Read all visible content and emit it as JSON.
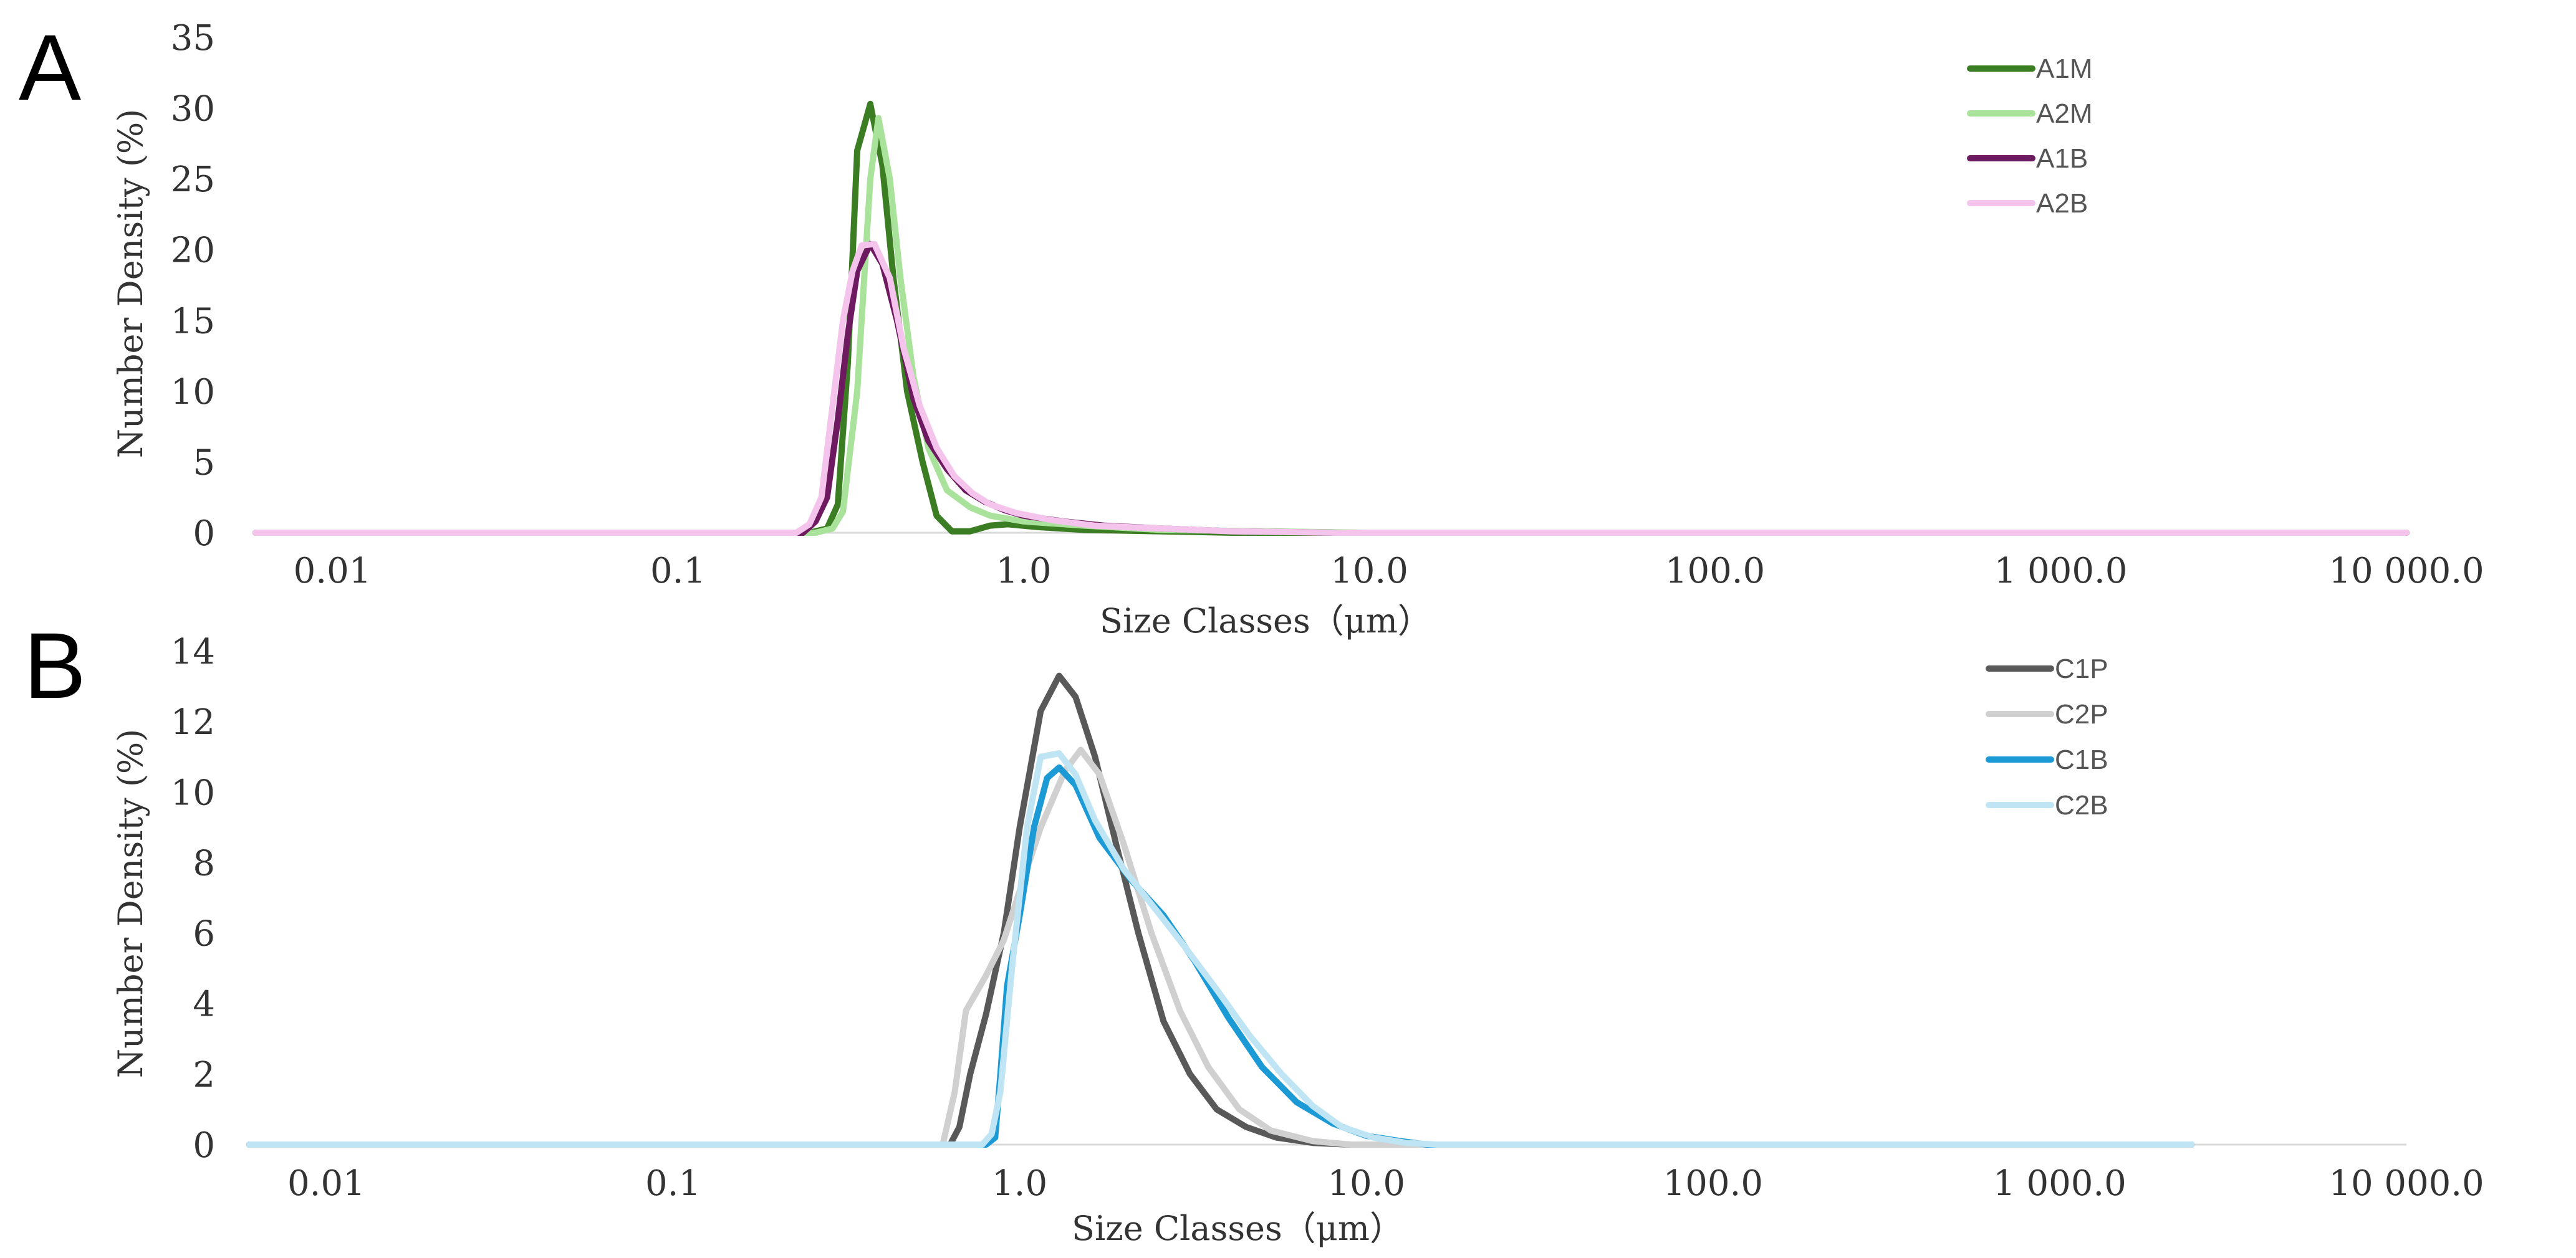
{
  "chart_data": [
    {
      "panel": "A",
      "type": "line",
      "xscale": "log",
      "xlim": [
        0.006,
        10000
      ],
      "ylim": [
        0,
        35
      ],
      "yticks": [
        0,
        5,
        10,
        15,
        20,
        25,
        30,
        35
      ],
      "xticks": [
        {
          "value": 0.01,
          "label": "0.01"
        },
        {
          "value": 0.1,
          "label": "0.1"
        },
        {
          "value": 1,
          "label": "1.0"
        },
        {
          "value": 10,
          "label": "10.0"
        },
        {
          "value": 100,
          "label": "100.0"
        },
        {
          "value": 1000,
          "label": "1 000.0"
        },
        {
          "value": 10000,
          "label": "10 000.0"
        }
      ],
      "xlabel": "Size Classes（μm）",
      "ylabel": "Number Density (%)",
      "legend_position": "top-right",
      "series": [
        {
          "name": "A1M",
          "color": "#3a7d22",
          "points": [
            [
              0.006,
              0
            ],
            [
              0.24,
              0
            ],
            [
              0.27,
              0.3
            ],
            [
              0.29,
              2
            ],
            [
              0.31,
              12
            ],
            [
              0.33,
              27
            ],
            [
              0.36,
              30.3
            ],
            [
              0.39,
              26
            ],
            [
              0.42,
              18
            ],
            [
              0.46,
              10
            ],
            [
              0.51,
              5
            ],
            [
              0.56,
              1.2
            ],
            [
              0.62,
              0.1
            ],
            [
              0.7,
              0.1
            ],
            [
              0.8,
              0.5
            ],
            [
              0.9,
              0.6
            ],
            [
              1.1,
              0.4
            ],
            [
              1.5,
              0.2
            ],
            [
              2.5,
              0.1
            ],
            [
              4,
              0
            ],
            [
              10000,
              0
            ]
          ]
        },
        {
          "name": "A2M",
          "color": "#a9e29a",
          "points": [
            [
              0.006,
              0
            ],
            [
              0.25,
              0
            ],
            [
              0.28,
              0.3
            ],
            [
              0.3,
              1.5
            ],
            [
              0.33,
              10
            ],
            [
              0.36,
              25
            ],
            [
              0.38,
              29.3
            ],
            [
              0.41,
              25
            ],
            [
              0.44,
              18
            ],
            [
              0.48,
              11
            ],
            [
              0.53,
              6
            ],
            [
              0.6,
              3
            ],
            [
              0.7,
              1.8
            ],
            [
              0.8,
              1.2
            ],
            [
              1,
              0.8
            ],
            [
              1.5,
              0.5
            ],
            [
              2.5,
              0.2
            ],
            [
              5,
              0.1
            ],
            [
              10,
              0
            ],
            [
              10000,
              0
            ]
          ]
        },
        {
          "name": "A1B",
          "color": "#6e1a60",
          "points": [
            [
              0.006,
              0
            ],
            [
              0.23,
              0
            ],
            [
              0.25,
              0.8
            ],
            [
              0.27,
              2.5
            ],
            [
              0.29,
              8
            ],
            [
              0.31,
              14
            ],
            [
              0.33,
              18.5
            ],
            [
              0.36,
              20.4
            ],
            [
              0.39,
              19
            ],
            [
              0.43,
              15
            ],
            [
              0.48,
              9.5
            ],
            [
              0.53,
              6.5
            ],
            [
              0.6,
              4.5
            ],
            [
              0.68,
              3
            ],
            [
              0.77,
              2.2
            ],
            [
              0.88,
              1.6
            ],
            [
              1,
              1.2
            ],
            [
              1.3,
              0.8
            ],
            [
              1.7,
              0.5
            ],
            [
              2.5,
              0.3
            ],
            [
              4,
              0.1
            ],
            [
              8,
              0
            ],
            [
              10000,
              0
            ]
          ]
        },
        {
          "name": "A2B",
          "color": "#f5c4ec",
          "points": [
            [
              0.006,
              0
            ],
            [
              0.22,
              0
            ],
            [
              0.24,
              0.6
            ],
            [
              0.26,
              2.5
            ],
            [
              0.28,
              9
            ],
            [
              0.3,
              15
            ],
            [
              0.32,
              18.5
            ],
            [
              0.34,
              20.3
            ],
            [
              0.37,
              20.4
            ],
            [
              0.41,
              18
            ],
            [
              0.45,
              13
            ],
            [
              0.5,
              9
            ],
            [
              0.56,
              6
            ],
            [
              0.63,
              4
            ],
            [
              0.71,
              2.8
            ],
            [
              0.8,
              2
            ],
            [
              0.95,
              1.4
            ],
            [
              1.2,
              0.9
            ],
            [
              1.6,
              0.5
            ],
            [
              2.5,
              0.3
            ],
            [
              4,
              0.1
            ],
            [
              8,
              0
            ],
            [
              10000,
              0
            ]
          ]
        }
      ]
    },
    {
      "panel": "B",
      "type": "line",
      "xscale": "log",
      "xlim": [
        0.006,
        10000
      ],
      "ylim": [
        0,
        14
      ],
      "yticks": [
        0,
        2,
        4,
        6,
        8,
        10,
        12,
        14
      ],
      "xticks": [
        {
          "value": 0.01,
          "label": "0.01"
        },
        {
          "value": 0.1,
          "label": "0.1"
        },
        {
          "value": 1,
          "label": "1.0"
        },
        {
          "value": 10,
          "label": "10.0"
        },
        {
          "value": 100,
          "label": "100.0"
        },
        {
          "value": 1000,
          "label": "1 000.0"
        },
        {
          "value": 10000,
          "label": "10 000.0"
        }
      ],
      "xlabel": "Size Classes（μm）",
      "ylabel": "Number Density (%)",
      "legend_position": "top-right",
      "series": [
        {
          "name": "C1P",
          "color": "#595959",
          "points": [
            [
              0.006,
              0
            ],
            [
              0.63,
              0
            ],
            [
              0.67,
              0.5
            ],
            [
              0.72,
              2
            ],
            [
              0.8,
              3.7
            ],
            [
              0.9,
              6
            ],
            [
              1,
              9
            ],
            [
              1.15,
              12.3
            ],
            [
              1.3,
              13.3
            ],
            [
              1.45,
              12.7
            ],
            [
              1.65,
              11
            ],
            [
              1.9,
              8.5
            ],
            [
              2.2,
              6
            ],
            [
              2.6,
              3.5
            ],
            [
              3.1,
              2
            ],
            [
              3.7,
              1
            ],
            [
              4.5,
              0.5
            ],
            [
              5.5,
              0.2
            ],
            [
              7,
              0.05
            ],
            [
              9,
              0
            ],
            [
              2400,
              0
            ]
          ]
        },
        {
          "name": "C2P",
          "color": "#d0d0d0",
          "points": [
            [
              0.006,
              0
            ],
            [
              0.6,
              0
            ],
            [
              0.65,
              1.5
            ],
            [
              0.7,
              3.8
            ],
            [
              0.8,
              4.8
            ],
            [
              0.9,
              5.8
            ],
            [
              1,
              7.2
            ],
            [
              1.15,
              9
            ],
            [
              1.35,
              10.6
            ],
            [
              1.5,
              11.2
            ],
            [
              1.7,
              10.5
            ],
            [
              2,
              8.5
            ],
            [
              2.4,
              6
            ],
            [
              2.9,
              3.8
            ],
            [
              3.5,
              2.2
            ],
            [
              4.3,
              1
            ],
            [
              5.3,
              0.4
            ],
            [
              7,
              0.1
            ],
            [
              9,
              0
            ],
            [
              2400,
              0
            ]
          ]
        },
        {
          "name": "C1B",
          "color": "#1c9ad6",
          "points": [
            [
              0.006,
              0
            ],
            [
              0.8,
              0
            ],
            [
              0.85,
              0.2
            ],
            [
              0.88,
              2
            ],
            [
              0.92,
              4.5
            ],
            [
              1,
              6.5
            ],
            [
              1.1,
              9
            ],
            [
              1.2,
              10.4
            ],
            [
              1.3,
              10.7
            ],
            [
              1.45,
              10.2
            ],
            [
              1.7,
              8.7
            ],
            [
              2.1,
              7.5
            ],
            [
              2.6,
              6.5
            ],
            [
              3.2,
              5.2
            ],
            [
              4,
              3.6
            ],
            [
              5,
              2.2
            ],
            [
              6.3,
              1.2
            ],
            [
              8,
              0.6
            ],
            [
              10,
              0.25
            ],
            [
              12.5,
              0.1
            ],
            [
              15,
              0
            ],
            [
              2400,
              0
            ]
          ]
        },
        {
          "name": "C2B",
          "color": "#bfe5f5",
          "points": [
            [
              0.006,
              0
            ],
            [
              0.78,
              0
            ],
            [
              0.83,
              0.3
            ],
            [
              0.88,
              1.5
            ],
            [
              0.95,
              5
            ],
            [
              1.05,
              9
            ],
            [
              1.15,
              11
            ],
            [
              1.3,
              11.1
            ],
            [
              1.45,
              10.5
            ],
            [
              1.65,
              9.2
            ],
            [
              2,
              7.8
            ],
            [
              2.5,
              6.6
            ],
            [
              3,
              5.6
            ],
            [
              3.7,
              4.4
            ],
            [
              4.6,
              3.1
            ],
            [
              5.7,
              2
            ],
            [
              7,
              1.1
            ],
            [
              8.5,
              0.5
            ],
            [
              10.5,
              0.2
            ],
            [
              13,
              0.05
            ],
            [
              16,
              0
            ],
            [
              2400,
              0
            ]
          ]
        }
      ]
    }
  ],
  "panels": [
    {
      "letter": "A",
      "legend": [
        "A1M",
        "A2M",
        "A1B",
        "A2B"
      ]
    },
    {
      "letter": "B",
      "legend": [
        "C1P",
        "C2P",
        "C1B",
        "C2B"
      ]
    }
  ]
}
